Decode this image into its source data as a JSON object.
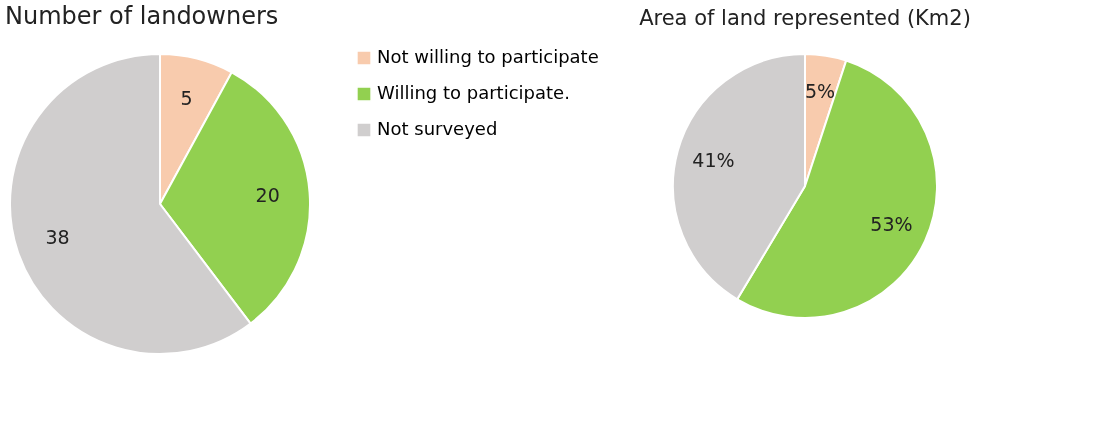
{
  "chart_data": [
    {
      "type": "pie",
      "title": "Number of landowners",
      "categories": [
        "Not willing to participate",
        "Willing to participate.",
        "Not surveyed"
      ],
      "values": [
        5,
        20,
        38
      ],
      "colors": [
        "#f8cbad",
        "#92d050",
        "#d0cece"
      ],
      "data_labels": true,
      "legend": "right"
    },
    {
      "type": "pie",
      "title": "Area of land represented (Km2)",
      "categories": [
        null,
        null,
        null
      ],
      "values": [
        5,
        53,
        41
      ],
      "colors": [
        "#f8cbad",
        "#92d050",
        "#d0cece"
      ],
      "value_labels": [
        "5%",
        "53%",
        "41%"
      ]
    }
  ]
}
